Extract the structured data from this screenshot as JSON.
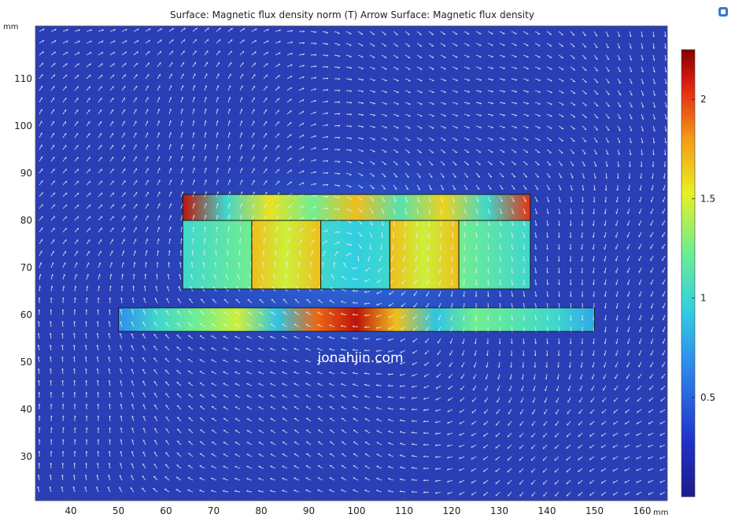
{
  "title": "Surface: Magnetic flux density norm (T)  Arrow Surface: Magnetic flux density",
  "watermark": "jonahjin.com",
  "axes": {
    "x_unit": "mm",
    "y_unit": "mm",
    "x_ticks": [
      "40",
      "50",
      "60",
      "70",
      "80",
      "90",
      "100",
      "110",
      "120",
      "130",
      "140",
      "150",
      "160"
    ],
    "y_ticks": [
      "110",
      "100",
      "90",
      "80",
      "70",
      "60",
      "50",
      "40",
      "30"
    ]
  },
  "colorbar": {
    "ticks": [
      "2",
      "1.5",
      "1",
      "0.5"
    ],
    "min_color": "#1f1f8f",
    "max_color": "#8b0000"
  },
  "colors": {
    "background_field": "#2a3fb5",
    "arrow": "#e8ecf7"
  },
  "icons": {
    "view_icon": "3d-view-icon"
  },
  "chart_data": {
    "type": "heatmap",
    "title": "Surface: Magnetic flux density norm (T)  Arrow Surface: Magnetic flux density",
    "xlabel": "mm",
    "ylabel": "mm",
    "xlim": [
      33,
      165
    ],
    "ylim": [
      20,
      121
    ],
    "colorbar_range": [
      0,
      2.25
    ],
    "colorbar_ticks": [
      0.5,
      1,
      1.5,
      2
    ],
    "regions": [
      {
        "name": "",
        "x": [
          63.5,
          136.5
        ],
        "y": [
          80,
          85.5
        ]
      },
      {
        "name": "",
        "x": [
          63.5,
          78
        ],
        "y": [
          65.5,
          80
        ]
      },
      {
        "name": "",
        "x": [
          78,
          92.5
        ],
        "y": [
          65.5,
          80
        ]
      },
      {
        "name": "",
        "x": [
          92.5,
          107
        ],
        "y": [
          65.5,
          80
        ]
      },
      {
        "name": "",
        "x": [
          107,
          121.5
        ],
        "y": [
          65.5,
          80
        ]
      },
      {
        "name": "",
        "x": [
          121.5,
          136.5
        ],
        "y": [
          65.5,
          80
        ]
      },
      {
        "name": "",
        "x": [
          50,
          150
        ],
        "y": [
          56.5,
          61.5
        ]
      }
    ]
  }
}
